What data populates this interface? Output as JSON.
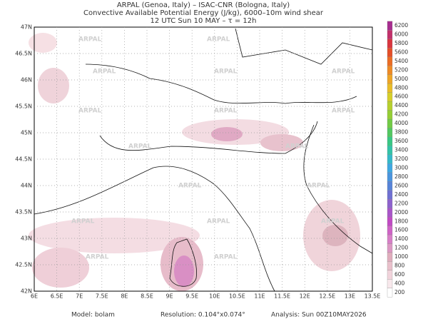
{
  "header": {
    "line1": "ARPAL (Genoa, Italy)  –  ISAC-CNR (Bologna, Italy)",
    "line2": "Convective Available Potential Energy (J/kg), 6000–10m wind shear",
    "line3": "12 UTC Sun 10 MAY  –  τ = 12h"
  },
  "lon_labels": [
    "6E",
    "6.5E",
    "7E",
    "7.5E",
    "8E",
    "8.5E",
    "9E",
    "9.5E",
    "10E",
    "10.5E",
    "11E",
    "11.5E",
    "12E",
    "12.5E",
    "13E",
    "13.5E"
  ],
  "lat_labels": [
    "42N",
    "42.5N",
    "43N",
    "43.5N",
    "44N",
    "44.5N",
    "45N",
    "45.5N",
    "46N",
    "46.5N",
    "47N"
  ],
  "watermark": "ARPAL",
  "colorbar": {
    "labels": [
      "200",
      "400",
      "600",
      "800",
      "1000",
      "1200",
      "1400",
      "1600",
      "1800",
      "2000",
      "2200",
      "2400",
      "2600",
      "2800",
      "3000",
      "3200",
      "3400",
      "3600",
      "3800",
      "4000",
      "4200",
      "4400",
      "4600",
      "4800",
      "5000",
      "5200",
      "5400",
      "5600",
      "5800",
      "6000",
      "6200"
    ],
    "colors": [
      "#ffffff",
      "#f8e8ec",
      "#f1d3db",
      "#e9c0cb",
      "#e0adbd",
      "#dc98c4",
      "#d77fc7",
      "#cf63c6",
      "#c14ac4",
      "#a955c9",
      "#8d62cd",
      "#6f70d2",
      "#5683d8",
      "#4a95de",
      "#3ea8e2",
      "#35b9c9",
      "#33c3a8",
      "#38c784",
      "#52c860",
      "#72cb45",
      "#95ce35",
      "#b7d02e",
      "#d6cf2a",
      "#e9bd28",
      "#eea526",
      "#ee8a25",
      "#eb6c24",
      "#e44e28",
      "#d9363f",
      "#c2306a",
      "#a72d8f"
    ]
  },
  "footer": {
    "model": "Model: bolam",
    "resolution": "Resolution: 0.104°x0.074°",
    "analysis": "Analysis: Sun 00Z10MAY2026"
  }
}
